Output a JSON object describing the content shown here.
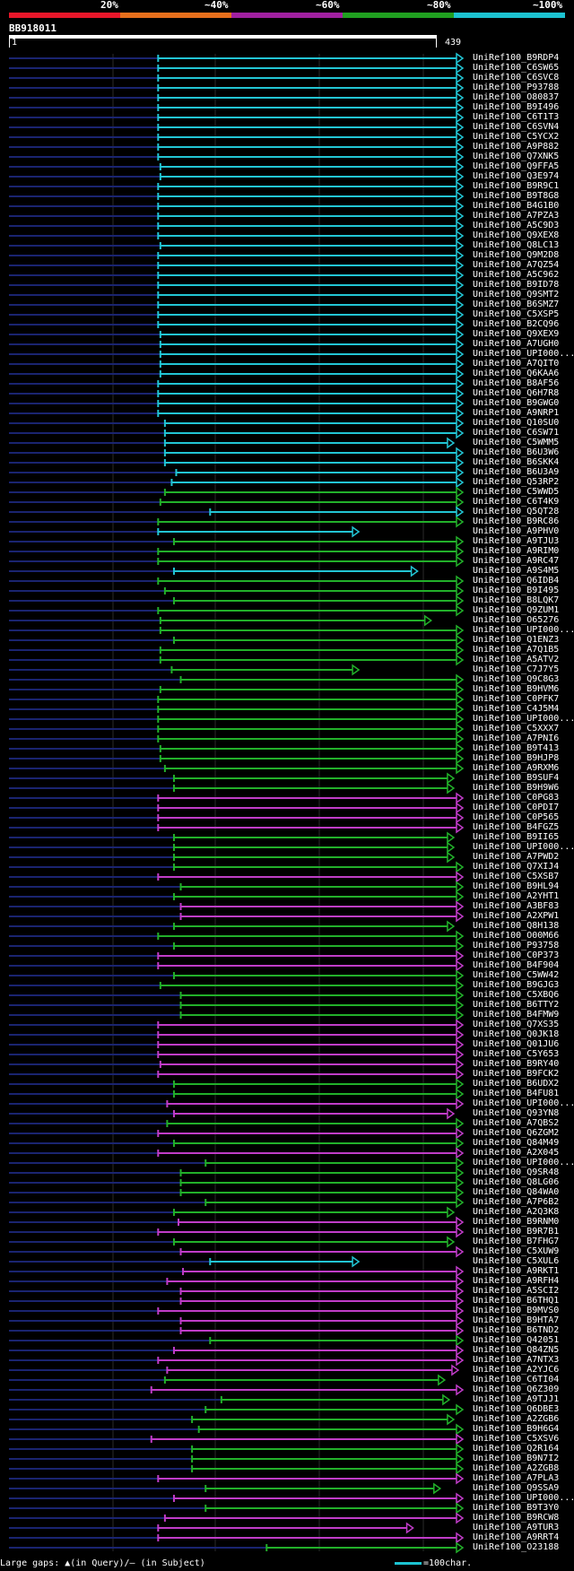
{
  "query": {
    "id": "BB918011",
    "range_start": "1",
    "range_end": "439"
  },
  "legend": [
    {
      "label": "20%",
      "color": "#e8172a"
    },
    {
      "label": "~40%",
      "color": "#e76f1c"
    },
    {
      "label": "~60%",
      "color": "#a020a0"
    },
    {
      "label": "~80%",
      "color": "#20a020"
    },
    {
      "label": "~100%",
      "color": "#1cc3d1"
    }
  ],
  "footer": {
    "gaps_text": "Large gaps: ▲(in Query)/– (in Subject)",
    "scale_text": "=100char."
  },
  "colors": {
    "cyan": "#22c5d4",
    "green": "#22b02a",
    "magenta": "#c03cc8",
    "navy": "#1a2470"
  },
  "hits": [
    {
      "id": "UniRef100_B9RDP4",
      "c": "cyan",
      "s": 0.33,
      "e": 1.0
    },
    {
      "id": "UniRef100_C6SW65",
      "c": "cyan",
      "s": 0.33,
      "e": 1.0
    },
    {
      "id": "UniRef100_C6SVC8",
      "c": "cyan",
      "s": 0.33,
      "e": 1.0
    },
    {
      "id": "UniRef100_P93788",
      "c": "cyan",
      "s": 0.33,
      "e": 1.0
    },
    {
      "id": "UniRef100_O80837",
      "c": "cyan",
      "s": 0.33,
      "e": 1.0
    },
    {
      "id": "UniRef100_B9I496",
      "c": "cyan",
      "s": 0.33,
      "e": 1.0
    },
    {
      "id": "UniRef100_C6T1T3",
      "c": "cyan",
      "s": 0.33,
      "e": 1.0
    },
    {
      "id": "UniRef100_C6SVN4",
      "c": "cyan",
      "s": 0.33,
      "e": 1.0
    },
    {
      "id": "UniRef100_C5YCX2",
      "c": "cyan",
      "s": 0.33,
      "e": 1.0
    },
    {
      "id": "UniRef100_A9P882",
      "c": "cyan",
      "s": 0.33,
      "e": 1.0
    },
    {
      "id": "UniRef100_Q7XNK5",
      "c": "cyan",
      "s": 0.33,
      "e": 1.0
    },
    {
      "id": "UniRef100_Q9FFA5",
      "c": "cyan",
      "s": 0.335,
      "e": 1.0
    },
    {
      "id": "UniRef100_Q3E974",
      "c": "cyan",
      "s": 0.335,
      "e": 1.0
    },
    {
      "id": "UniRef100_B9R9C1",
      "c": "cyan",
      "s": 0.33,
      "e": 1.0
    },
    {
      "id": "UniRef100_B9T8G8",
      "c": "cyan",
      "s": 0.33,
      "e": 1.0
    },
    {
      "id": "UniRef100_B4G1B0",
      "c": "cyan",
      "s": 0.33,
      "e": 1.0
    },
    {
      "id": "UniRef100_A7PZA3",
      "c": "cyan",
      "s": 0.33,
      "e": 1.0
    },
    {
      "id": "UniRef100_A5C9D3",
      "c": "cyan",
      "s": 0.33,
      "e": 1.0
    },
    {
      "id": "UniRef100_Q9XEX8",
      "c": "cyan",
      "s": 0.33,
      "e": 1.0
    },
    {
      "id": "UniRef100_Q8LC13",
      "c": "cyan",
      "s": 0.335,
      "e": 1.0
    },
    {
      "id": "UniRef100_Q9M2D8",
      "c": "cyan",
      "s": 0.33,
      "e": 1.0
    },
    {
      "id": "UniRef100_A7QZ54",
      "c": "cyan",
      "s": 0.33,
      "e": 1.0
    },
    {
      "id": "UniRef100_A5C962",
      "c": "cyan",
      "s": 0.33,
      "e": 1.0
    },
    {
      "id": "UniRef100_B9ID78",
      "c": "cyan",
      "s": 0.33,
      "e": 1.0
    },
    {
      "id": "UniRef100_Q9SMT2",
      "c": "cyan",
      "s": 0.33,
      "e": 1.0
    },
    {
      "id": "UniRef100_B6SMZ7",
      "c": "cyan",
      "s": 0.33,
      "e": 1.0
    },
    {
      "id": "UniRef100_C5XSP5",
      "c": "cyan",
      "s": 0.33,
      "e": 1.0
    },
    {
      "id": "UniRef100_B2CQ96",
      "c": "cyan",
      "s": 0.33,
      "e": 1.0
    },
    {
      "id": "UniRef100_Q9XEX9",
      "c": "cyan",
      "s": 0.335,
      "e": 1.0
    },
    {
      "id": "UniRef100_A7UGH0",
      "c": "cyan",
      "s": 0.335,
      "e": 1.0
    },
    {
      "id": "UniRef100_UPI000...",
      "c": "cyan",
      "s": 0.335,
      "e": 1.0
    },
    {
      "id": "UniRef100_A7QIT0",
      "c": "cyan",
      "s": 0.335,
      "e": 1.0
    },
    {
      "id": "UniRef100_Q6KAA6",
      "c": "cyan",
      "s": 0.335,
      "e": 1.0
    },
    {
      "id": "UniRef100_B8AF56",
      "c": "cyan",
      "s": 0.33,
      "e": 1.0
    },
    {
      "id": "UniRef100_Q6H7R8",
      "c": "cyan",
      "s": 0.33,
      "e": 1.0
    },
    {
      "id": "UniRef100_B9GWG0",
      "c": "cyan",
      "s": 0.33,
      "e": 1.0
    },
    {
      "id": "UniRef100_A9NRP1",
      "c": "cyan",
      "s": 0.33,
      "e": 1.0
    },
    {
      "id": "UniRef100_Q10SU0",
      "c": "cyan",
      "s": 0.345,
      "e": 1.0
    },
    {
      "id": "UniRef100_C6SW71",
      "c": "cyan",
      "s": 0.345,
      "e": 1.0
    },
    {
      "id": "UniRef100_C5WMM5",
      "c": "cyan",
      "s": 0.345,
      "e": 0.98
    },
    {
      "id": "UniRef100_B6U3W6",
      "c": "cyan",
      "s": 0.345,
      "e": 1.0
    },
    {
      "id": "UniRef100_B6SKK4",
      "c": "cyan",
      "s": 0.345,
      "e": 1.0
    },
    {
      "id": "UniRef100_B6U3A9",
      "c": "cyan",
      "s": 0.37,
      "e": 1.0
    },
    {
      "id": "UniRef100_Q53RP2",
      "c": "cyan",
      "s": 0.36,
      "e": 1.0
    },
    {
      "id": "UniRef100_C5WWD5",
      "c": "green",
      "s": 0.345,
      "e": 1.0
    },
    {
      "id": "UniRef100_C6T4K9",
      "c": "green",
      "s": 0.335,
      "e": 1.0
    },
    {
      "id": "UniRef100_Q5QT28",
      "c": "cyan",
      "s": 0.445,
      "e": 1.0
    },
    {
      "id": "UniRef100_B9RC86",
      "c": "green",
      "s": 0.33,
      "e": 1.0
    },
    {
      "id": "UniRef100_A9PHV0",
      "c": "cyan",
      "s": 0.33,
      "e": 0.77
    },
    {
      "id": "UniRef100_A9TJU3",
      "c": "green",
      "s": 0.365,
      "e": 1.0
    },
    {
      "id": "UniRef100_A9RIM0",
      "c": "green",
      "s": 0.33,
      "e": 1.0
    },
    {
      "id": "UniRef100_A9RC47",
      "c": "green",
      "s": 0.33,
      "e": 1.0
    },
    {
      "id": "UniRef100_A9S4M5",
      "c": "cyan",
      "s": 0.365,
      "e": 0.9
    },
    {
      "id": "UniRef100_Q6IDB4",
      "c": "green",
      "s": 0.33,
      "e": 1.0
    },
    {
      "id": "UniRef100_B9I495",
      "c": "green",
      "s": 0.345,
      "e": 1.0
    },
    {
      "id": "UniRef100_B8LQK7",
      "c": "green",
      "s": 0.365,
      "e": 1.0
    },
    {
      "id": "UniRef100_Q9ZUM1",
      "c": "green",
      "s": 0.33,
      "e": 1.0
    },
    {
      "id": "UniRef100_O65276",
      "c": "green",
      "s": 0.335,
      "e": 0.93
    },
    {
      "id": "UniRef100_UPI000...",
      "c": "green",
      "s": 0.335,
      "e": 1.0
    },
    {
      "id": "UniRef100_Q1ENZ3",
      "c": "green",
      "s": 0.365,
      "e": 1.0
    },
    {
      "id": "UniRef100_A7Q1B5",
      "c": "green",
      "s": 0.335,
      "e": 1.0
    },
    {
      "id": "UniRef100_A5ATV2",
      "c": "green",
      "s": 0.335,
      "e": 1.0
    },
    {
      "id": "UniRef100_C7J7Y5",
      "c": "green",
      "s": 0.36,
      "e": 0.77
    },
    {
      "id": "UniRef100_Q9C8G3",
      "c": "green",
      "s": 0.38,
      "e": 1.0
    },
    {
      "id": "UniRef100_B9HVM6",
      "c": "green",
      "s": 0.335,
      "e": 1.0
    },
    {
      "id": "UniRef100_C0PFK7",
      "c": "green",
      "s": 0.33,
      "e": 1.0
    },
    {
      "id": "UniRef100_C4J5M4",
      "c": "green",
      "s": 0.33,
      "e": 1.0
    },
    {
      "id": "UniRef100_UPI000...",
      "c": "green",
      "s": 0.33,
      "e": 1.0
    },
    {
      "id": "UniRef100_C5XXX7",
      "c": "green",
      "s": 0.33,
      "e": 1.0
    },
    {
      "id": "UniRef100_A7PNI6",
      "c": "green",
      "s": 0.33,
      "e": 1.0
    },
    {
      "id": "UniRef100_B9T413",
      "c": "green",
      "s": 0.335,
      "e": 1.0
    },
    {
      "id": "UniRef100_B9HJP8",
      "c": "green",
      "s": 0.335,
      "e": 1.0
    },
    {
      "id": "UniRef100_A9RXM6",
      "c": "green",
      "s": 0.345,
      "e": 1.0
    },
    {
      "id": "UniRef100_B9SUF4",
      "c": "green",
      "s": 0.365,
      "e": 0.98
    },
    {
      "id": "UniRef100_B9H9W6",
      "c": "green",
      "s": 0.365,
      "e": 0.98
    },
    {
      "id": "UniRef100_C0PG83",
      "c": "magenta",
      "s": 0.33,
      "e": 1.0
    },
    {
      "id": "UniRef100_C0PDI7",
      "c": "magenta",
      "s": 0.33,
      "e": 1.0
    },
    {
      "id": "UniRef100_C0P565",
      "c": "magenta",
      "s": 0.33,
      "e": 1.0
    },
    {
      "id": "UniRef100_B4FGZ5",
      "c": "magenta",
      "s": 0.33,
      "e": 1.0
    },
    {
      "id": "UniRef100_B9II65",
      "c": "green",
      "s": 0.365,
      "e": 0.98
    },
    {
      "id": "UniRef100_UPI000...",
      "c": "green",
      "s": 0.365,
      "e": 0.98
    },
    {
      "id": "UniRef100_A7PWD2",
      "c": "green",
      "s": 0.365,
      "e": 0.98
    },
    {
      "id": "UniRef100_Q7XIJ4",
      "c": "green",
      "s": 0.365,
      "e": 1.0
    },
    {
      "id": "UniRef100_C5XSB7",
      "c": "magenta",
      "s": 0.33,
      "e": 1.0
    },
    {
      "id": "UniRef100_B9HL94",
      "c": "green",
      "s": 0.38,
      "e": 1.0
    },
    {
      "id": "UniRef100_A2YHT1",
      "c": "green",
      "s": 0.365,
      "e": 1.0
    },
    {
      "id": "UniRef100_A3BF83",
      "c": "magenta",
      "s": 0.38,
      "e": 1.0
    },
    {
      "id": "UniRef100_A2XPW1",
      "c": "magenta",
      "s": 0.38,
      "e": 1.0
    },
    {
      "id": "UniRef100_Q8H138",
      "c": "green",
      "s": 0.365,
      "e": 0.98
    },
    {
      "id": "UniRef100_O00M66",
      "c": "green",
      "s": 0.33,
      "e": 1.0
    },
    {
      "id": "UniRef100_P93758",
      "c": "green",
      "s": 0.365,
      "e": 1.0
    },
    {
      "id": "UniRef100_C0P373",
      "c": "magenta",
      "s": 0.33,
      "e": 1.0
    },
    {
      "id": "UniRef100_B4F904",
      "c": "magenta",
      "s": 0.33,
      "e": 1.0
    },
    {
      "id": "UniRef100_C5WW42",
      "c": "green",
      "s": 0.365,
      "e": 1.0
    },
    {
      "id": "UniRef100_B9GJG3",
      "c": "green",
      "s": 0.335,
      "e": 1.0
    },
    {
      "id": "UniRef100_C5XBQ6",
      "c": "green",
      "s": 0.38,
      "e": 1.0
    },
    {
      "id": "UniRef100_B6TTY2",
      "c": "green",
      "s": 0.38,
      "e": 1.0
    },
    {
      "id": "UniRef100_B4FMW9",
      "c": "green",
      "s": 0.38,
      "e": 1.0
    },
    {
      "id": "UniRef100_Q7XS35",
      "c": "magenta",
      "s": 0.33,
      "e": 1.0
    },
    {
      "id": "UniRef100_Q0JK18",
      "c": "magenta",
      "s": 0.33,
      "e": 1.0
    },
    {
      "id": "UniRef100_Q01JU6",
      "c": "magenta",
      "s": 0.33,
      "e": 1.0
    },
    {
      "id": "UniRef100_C5Y653",
      "c": "magenta",
      "s": 0.33,
      "e": 1.0
    },
    {
      "id": "UniRef100_B9RY40",
      "c": "magenta",
      "s": 0.335,
      "e": 1.0
    },
    {
      "id": "UniRef100_B9FCK2",
      "c": "magenta",
      "s": 0.33,
      "e": 1.0
    },
    {
      "id": "UniRef100_B6UDX2",
      "c": "green",
      "s": 0.365,
      "e": 1.0
    },
    {
      "id": "UniRef100_B4FU81",
      "c": "green",
      "s": 0.365,
      "e": 1.0
    },
    {
      "id": "UniRef100_UPI000...",
      "c": "magenta",
      "s": 0.35,
      "e": 1.0
    },
    {
      "id": "UniRef100_Q93YN8",
      "c": "magenta",
      "s": 0.365,
      "e": 0.98
    },
    {
      "id": "UniRef100_A7QBS2",
      "c": "green",
      "s": 0.35,
      "e": 1.0
    },
    {
      "id": "UniRef100_Q6ZGM2",
      "c": "magenta",
      "s": 0.33,
      "e": 1.0
    },
    {
      "id": "UniRef100_Q84M49",
      "c": "green",
      "s": 0.365,
      "e": 1.0
    },
    {
      "id": "UniRef100_A2X045",
      "c": "magenta",
      "s": 0.33,
      "e": 1.0
    },
    {
      "id": "UniRef100_UPI000...",
      "c": "green",
      "s": 0.435,
      "e": 1.0
    },
    {
      "id": "UniRef100_Q9SR48",
      "c": "green",
      "s": 0.38,
      "e": 1.0
    },
    {
      "id": "UniRef100_Q8LG06",
      "c": "green",
      "s": 0.38,
      "e": 1.0
    },
    {
      "id": "UniRef100_Q84WA0",
      "c": "green",
      "s": 0.38,
      "e": 1.0
    },
    {
      "id": "UniRef100_A7P6B2",
      "c": "green",
      "s": 0.435,
      "e": 1.0
    },
    {
      "id": "UniRef100_A2Q3K8",
      "c": "green",
      "s": 0.365,
      "e": 0.98
    },
    {
      "id": "UniRef100_B9RNM0",
      "c": "magenta",
      "s": 0.375,
      "e": 1.0
    },
    {
      "id": "UniRef100_B9R7B1",
      "c": "magenta",
      "s": 0.33,
      "e": 1.0
    },
    {
      "id": "UniRef100_B7FHG7",
      "c": "green",
      "s": 0.365,
      "e": 0.98
    },
    {
      "id": "UniRef100_C5XUW9",
      "c": "magenta",
      "s": 0.38,
      "e": 1.0
    },
    {
      "id": "UniRef100_C5XUL6",
      "c": "cyan",
      "s": 0.445,
      "e": 0.77
    },
    {
      "id": "UniRef100_A9RKT1",
      "c": "magenta",
      "s": 0.385,
      "e": 1.0
    },
    {
      "id": "UniRef100_A9RFH4",
      "c": "magenta",
      "s": 0.35,
      "e": 1.0
    },
    {
      "id": "UniRef100_A5SCI2",
      "c": "magenta",
      "s": 0.38,
      "e": 1.0
    },
    {
      "id": "UniRef100_B6THQ1",
      "c": "magenta",
      "s": 0.38,
      "e": 1.0
    },
    {
      "id": "UniRef100_B9MVS0",
      "c": "magenta",
      "s": 0.33,
      "e": 1.0
    },
    {
      "id": "UniRef100_B9HTA7",
      "c": "magenta",
      "s": 0.38,
      "e": 1.0
    },
    {
      "id": "UniRef100_B6TND2",
      "c": "magenta",
      "s": 0.38,
      "e": 1.0
    },
    {
      "id": "UniRef100_Q42051",
      "c": "green",
      "s": 0.445,
      "e": 1.0
    },
    {
      "id": "UniRef100_Q84ZN5",
      "c": "magenta",
      "s": 0.365,
      "e": 1.0
    },
    {
      "id": "UniRef100_A7NTX3",
      "c": "magenta",
      "s": 0.33,
      "e": 1.0
    },
    {
      "id": "UniRef100_A2YJC6",
      "c": "magenta",
      "s": 0.35,
      "e": 0.99
    },
    {
      "id": "UniRef100_C6TI04",
      "c": "green",
      "s": 0.345,
      "e": 0.96
    },
    {
      "id": "UniRef100_Q6Z309",
      "c": "magenta",
      "s": 0.315,
      "e": 1.0
    },
    {
      "id": "UniRef100_A9TJJ1",
      "c": "green",
      "s": 0.47,
      "e": 0.97
    },
    {
      "id": "UniRef100_Q6DBE3",
      "c": "green",
      "s": 0.435,
      "e": 1.0
    },
    {
      "id": "UniRef100_A2ZGB6",
      "c": "green",
      "s": 0.405,
      "e": 0.98
    },
    {
      "id": "UniRef100_B9H6G4",
      "c": "green",
      "s": 0.42,
      "e": 1.0
    },
    {
      "id": "UniRef100_C5XSV6",
      "c": "magenta",
      "s": 0.315,
      "e": 1.0
    },
    {
      "id": "UniRef100_Q2R164",
      "c": "green",
      "s": 0.405,
      "e": 1.0
    },
    {
      "id": "UniRef100_B9N7I2",
      "c": "green",
      "s": 0.405,
      "e": 1.0
    },
    {
      "id": "UniRef100_A2ZGB8",
      "c": "green",
      "s": 0.405,
      "e": 1.0
    },
    {
      "id": "UniRef100_A7PLA3",
      "c": "magenta",
      "s": 0.33,
      "e": 1.0
    },
    {
      "id": "UniRef100_Q9SSA9",
      "c": "green",
      "s": 0.435,
      "e": 0.95
    },
    {
      "id": "UniRef100_UPI000...",
      "c": "magenta",
      "s": 0.365,
      "e": 1.0
    },
    {
      "id": "UniRef100_B9T3Y0",
      "c": "green",
      "s": 0.435,
      "e": 1.0
    },
    {
      "id": "UniRef100_B9RCW8",
      "c": "magenta",
      "s": 0.345,
      "e": 1.0
    },
    {
      "id": "UniRef100_A9TUR3",
      "c": "magenta",
      "s": 0.33,
      "e": 0.89
    },
    {
      "id": "UniRef100_A9RRT4",
      "c": "magenta",
      "s": 0.33,
      "e": 1.0
    },
    {
      "id": "UniRef100_O23188",
      "c": "green",
      "s": 0.57,
      "e": 1.0
    }
  ]
}
